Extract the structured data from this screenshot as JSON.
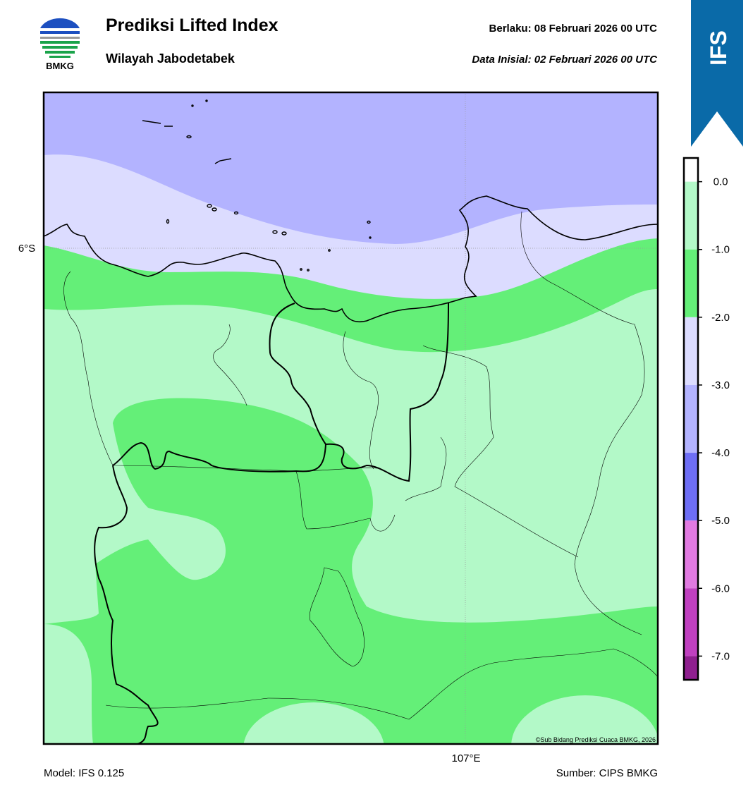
{
  "header": {
    "logo_text": "BMKG",
    "title": "Prediksi Lifted Index",
    "subtitle": "Wilayah Jabodetabek",
    "valid": "Berlaku:  08 Februari 2026 00 UTC",
    "init": "Data Inisial:  02 Februari 2026 00 UTC",
    "badge": "IFS"
  },
  "map": {
    "lat_label": "6°S",
    "lon_label": "107°E",
    "credit": "©Sub Bidang Prediksi Cuaca BMKG, 2026"
  },
  "colorbar": {
    "range": [
      0.35,
      -7.35
    ],
    "ticks": [
      {
        "value": 0,
        "label": "0.0"
      },
      {
        "value": -1,
        "label": "-1.0"
      },
      {
        "value": -2,
        "label": "-2.0"
      },
      {
        "value": -3,
        "label": "-3.0"
      },
      {
        "value": -4,
        "label": "-4.0"
      },
      {
        "value": -5,
        "label": "-5.0"
      },
      {
        "value": -6,
        "label": "-6.0"
      },
      {
        "value": -7,
        "label": "-7.0"
      }
    ],
    "colors": [
      "#ffffff",
      "#b3f9c8",
      "#64ef78",
      "#dcdcff",
      "#b3b3ff",
      "#6e6ef5",
      "#e17ae1",
      "#c040c0",
      "#8f1f8f"
    ]
  },
  "footer": {
    "model": "Model: IFS 0.125",
    "source": "Sumber: CIPS BMKG"
  }
}
